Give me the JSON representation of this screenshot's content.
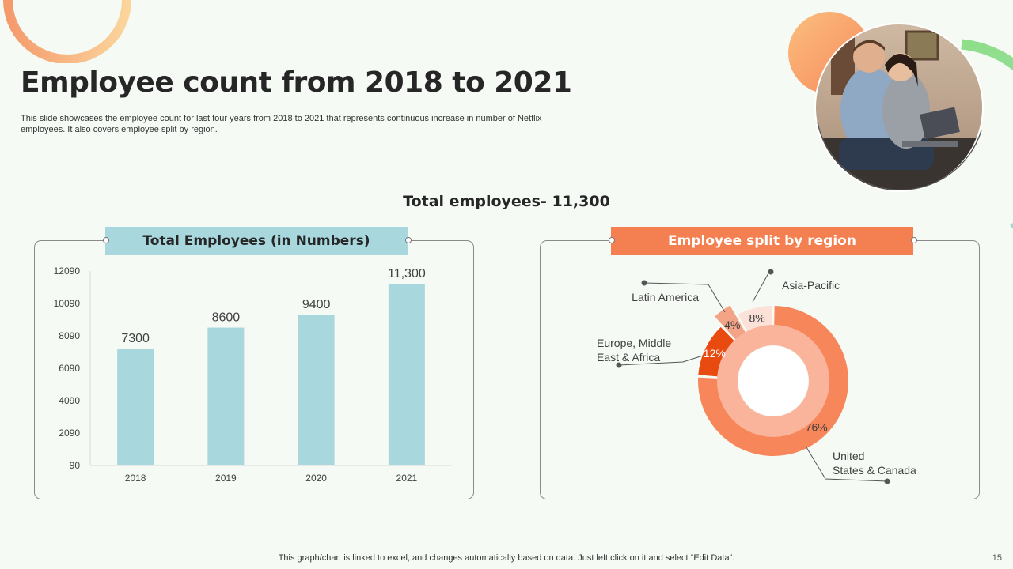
{
  "slide": {
    "title": "Employee count from 2018 to 2021",
    "subtitle": "This slide showcases the employee count for last four years from 2018 to 2021 that represents continuous increase in number of Netflix employees. It also covers employee split by region.",
    "total_employees_label": "Total employees- 11,300",
    "footer_note": "This graph/chart is linked to excel, and changes automatically based on data. Just left click on it and select “Edit Data”.",
    "page_number": "15"
  },
  "colors": {
    "bar": "#a8d8de",
    "bar_header": "#a8d8de",
    "region_header": "#f47f50",
    "us_canada": "#f7875b",
    "europe": "#e84a0f",
    "latin_america": "#f3a386",
    "asia_pacific": "#fbe1d8",
    "inner_ring": "#f9b49b"
  },
  "chart_data": [
    {
      "type": "bar",
      "title": "Total Employees (in Numbers)",
      "categories": [
        "2018",
        "2019",
        "2020",
        "2021"
      ],
      "values": [
        7300,
        8600,
        9400,
        11300
      ],
      "data_labels": [
        "7300",
        "8600",
        "9400",
        "11,300"
      ],
      "y_ticks": [
        "12090",
        "10090",
        "8090",
        "6090",
        "4090",
        "2090",
        "90"
      ],
      "ylim": [
        90,
        12090
      ],
      "xlabel": "",
      "ylabel": "",
      "grid": false
    },
    {
      "type": "pie",
      "title": "Employee split by region",
      "slices": [
        {
          "label": "United States & Canada",
          "label_lines": [
            "United",
            "States & Canada"
          ],
          "value": 76,
          "value_label": "76%"
        },
        {
          "label": "Europe, Middle East & Africa",
          "label_lines": [
            "Europe, Middle",
            "East & Africa"
          ],
          "value": 12,
          "value_label": "12%"
        },
        {
          "label": "Latin America",
          "label_lines": [
            "Latin America"
          ],
          "value": 4,
          "value_label": "4%"
        },
        {
          "label": "Asia-Pacific",
          "label_lines": [
            "Asia-Pacific"
          ],
          "value": 8,
          "value_label": "8%"
        }
      ]
    }
  ]
}
